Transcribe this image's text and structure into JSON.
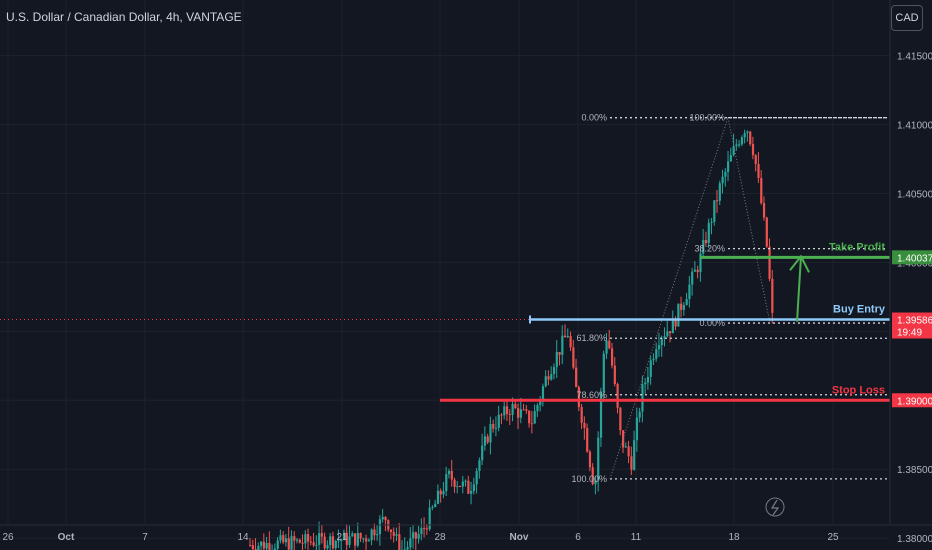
{
  "header": {
    "title": "U.S. Dollar / Canadian Dollar, 4h, VANTAGE",
    "currency": "CAD"
  },
  "colors": {
    "bg": "#131722",
    "up": "#26a69a",
    "down": "#ef5350",
    "grid": "#1e222d",
    "take_profit": "#4caf50",
    "entry": "#90caf9",
    "stop": "#f23645",
    "text": "#d1d4dc"
  },
  "chart_data": {
    "type": "candlestick",
    "title": "U.S. Dollar / Canadian Dollar, 4h, VANTAGE",
    "ylim": [
      1.3795,
      1.4165
    ],
    "y_ticks": [
      "1.41500",
      "1.41000",
      "1.40500",
      "1.40000",
      "1.39500",
      "1.39000",
      "1.38500",
      "1.38000"
    ],
    "x_ticks": [
      "26",
      "Oct",
      "7",
      "14",
      "21",
      "28",
      "Nov",
      "6",
      "11",
      "18",
      "25"
    ],
    "price_path": [
      [
        0,
        1.3795
      ],
      [
        0.22,
        1.38
      ],
      [
        0.26,
        1.3815
      ],
      [
        0.29,
        1.379
      ],
      [
        0.33,
        1.3805
      ],
      [
        0.38,
        1.3845
      ],
      [
        0.42,
        1.3835
      ],
      [
        0.46,
        1.388
      ],
      [
        0.5,
        1.3895
      ],
      [
        0.54,
        1.3885
      ],
      [
        0.57,
        1.392
      ],
      [
        0.61,
        1.395
      ],
      [
        0.62,
        1.3915
      ],
      [
        0.64,
        1.388
      ],
      [
        0.66,
        1.3835
      ],
      [
        0.68,
        1.395
      ],
      [
        0.69,
        1.3935
      ],
      [
        0.71,
        1.3872
      ],
      [
        0.73,
        1.3855
      ],
      [
        0.75,
        1.3905
      ],
      [
        0.78,
        1.3945
      ],
      [
        0.81,
        1.3955
      ],
      [
        0.86,
        1.4
      ],
      [
        0.9,
        1.4055
      ],
      [
        0.93,
        1.4085
      ],
      [
        0.95,
        1.41
      ],
      [
        0.965,
        1.408
      ],
      [
        0.98,
        1.404
      ],
      [
        0.99,
        1.401
      ],
      [
        1.0,
        1.396
      ]
    ],
    "fibonacci_main": [
      {
        "label": "0.00%",
        "value": 1.4105
      },
      {
        "label": "61.80%",
        "value": 1.3945
      },
      {
        "label": "78.60%",
        "value": 1.3904
      },
      {
        "label": "100.00%",
        "value": 1.3843
      }
    ],
    "fibonacci_retrace": [
      {
        "label": "100.00%",
        "value": 1.4105
      },
      {
        "label": "38.20%",
        "value": 1.401
      },
      {
        "label": "0.00%",
        "value": 1.3956
      }
    ],
    "levels": [
      {
        "name": "Take Profit",
        "value": 1.40037,
        "label": "1.40037",
        "color": "#4caf50"
      },
      {
        "name": "Buy Entry",
        "value": 1.39586,
        "label": "1.39586",
        "time": "19:49",
        "color": "#90caf9"
      },
      {
        "name": "Stop Loss",
        "value": 1.39,
        "label": "1.39000",
        "color": "#f23645"
      }
    ]
  }
}
